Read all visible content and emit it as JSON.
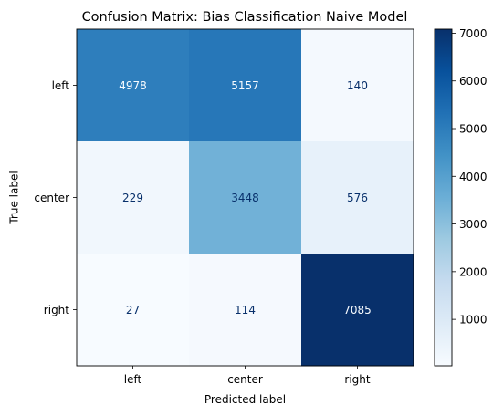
{
  "chart_data": {
    "type": "heatmap",
    "title": "Confusion Matrix: Bias Classification Naive Model",
    "xlabel": "Predicted label",
    "ylabel": "True label",
    "x_categories": [
      "left",
      "center",
      "right"
    ],
    "y_categories": [
      "left",
      "center",
      "right"
    ],
    "values": [
      [
        4978,
        5157,
        140
      ],
      [
        229,
        3448,
        576
      ],
      [
        27,
        114,
        7085
      ]
    ],
    "colormap": "Blues",
    "colorbar": {
      "range": [
        27,
        7085
      ],
      "ticks": [
        1000,
        2000,
        3000,
        4000,
        5000,
        6000,
        7000
      ],
      "tick_labels": [
        "1000",
        "2000",
        "3000",
        "4000",
        "5000",
        "6000",
        "7000"
      ]
    }
  }
}
